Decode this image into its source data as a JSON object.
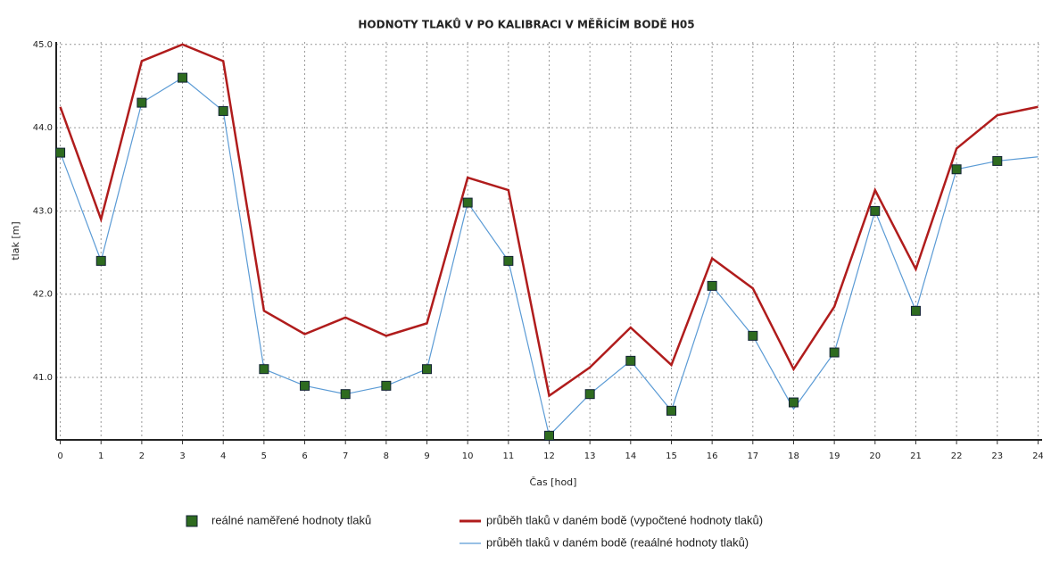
{
  "chart_data": {
    "type": "line",
    "title": "HODNOTY TLAKŮ V PO KALIBRACI V MĚŘÍCÍM BODĚ H05",
    "xlabel": "Čas [hod]",
    "ylabel": "tlak [m]",
    "x": [
      0,
      1,
      2,
      3,
      4,
      5,
      6,
      7,
      8,
      9,
      10,
      11,
      12,
      13,
      14,
      15,
      16,
      17,
      18,
      19,
      20,
      21,
      22,
      23,
      24
    ],
    "series": [
      {
        "name": "reálné naměřené hodnoty tlaků",
        "kind": "scatter",
        "color": "#2e6b1f",
        "values": [
          43.7,
          42.4,
          44.3,
          44.6,
          44.2,
          41.1,
          40.9,
          40.8,
          40.9,
          41.1,
          43.1,
          42.4,
          40.3,
          40.8,
          41.2,
          40.6,
          42.1,
          41.5,
          40.7,
          41.3,
          43.0,
          41.8,
          43.5,
          43.6,
          null
        ]
      },
      {
        "name": "průběh tlaků v daném bodě (vypočtené hodnoty tlaků)",
        "kind": "line",
        "color": "#b01c1c",
        "values": [
          44.25,
          42.9,
          44.8,
          45.0,
          44.8,
          41.8,
          41.52,
          41.72,
          41.5,
          41.65,
          43.4,
          43.25,
          40.78,
          41.12,
          41.6,
          41.15,
          42.43,
          42.07,
          41.1,
          41.85,
          43.25,
          42.3,
          43.75,
          44.15,
          44.25
        ]
      },
      {
        "name": "průběh tlaků v daném bodě (reaálné hodnoty tlaků)",
        "kind": "line",
        "color": "#5b9bd5",
        "values": [
          43.7,
          42.4,
          44.3,
          44.6,
          44.2,
          41.1,
          40.9,
          40.8,
          40.9,
          41.1,
          43.1,
          42.4,
          40.3,
          40.8,
          41.2,
          40.6,
          42.1,
          41.5,
          40.62,
          41.3,
          43.0,
          41.8,
          43.5,
          43.6,
          43.65
        ]
      }
    ],
    "xlim": [
      -0.1,
      24.1
    ],
    "xticks": [
      0,
      1,
      2,
      3,
      4,
      5,
      6,
      7,
      8,
      9,
      10,
      11,
      12,
      13,
      14,
      15,
      16,
      17,
      18,
      19,
      20,
      21,
      22,
      23,
      24
    ],
    "ylim": [
      40.25,
      45.03
    ],
    "yticks": [
      {
        "value": 41,
        "label": "41.0"
      },
      {
        "value": 42,
        "label": "42.0"
      },
      {
        "value": 43,
        "label": "43.0"
      },
      {
        "value": 44,
        "label": "44.0"
      },
      {
        "value": 45,
        "label": "45.0"
      }
    ],
    "grid": true,
    "legend": "bottom"
  }
}
